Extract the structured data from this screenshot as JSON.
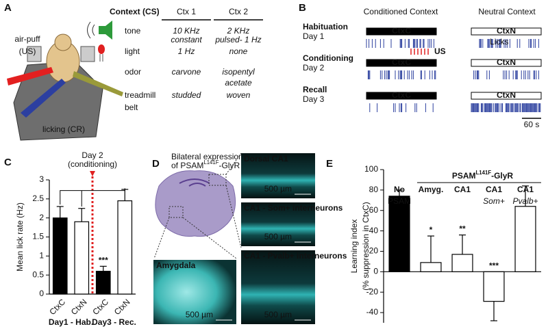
{
  "panel_labels": [
    "A",
    "B",
    "C",
    "D",
    "E"
  ],
  "panel_a": {
    "title": "Context (CS)",
    "columns": [
      "Ctx 1",
      "Ctx 2"
    ],
    "rows": [
      {
        "label": [
          "tone"
        ],
        "ctx1": [
          "10 KHz",
          "constant"
        ],
        "ctx2": [
          "2 KHz",
          "pulsed- 1 Hz"
        ]
      },
      {
        "label": [
          "light"
        ],
        "ctx1": [
          "1 Hz"
        ],
        "ctx2": [
          "none"
        ]
      },
      {
        "label": [
          "odor"
        ],
        "ctx1": [
          "carvone"
        ],
        "ctx2": [
          "isopentyl",
          "acetate"
        ]
      },
      {
        "label": [
          "treadmill",
          "belt"
        ],
        "ctx1": [
          "studded"
        ],
        "ctx2": [
          "woven"
        ]
      }
    ],
    "us_label": [
      "air-puff",
      "(US)"
    ],
    "cr_label": "licking (CR)"
  },
  "panel_b": {
    "columns": [
      "Conditioned Context",
      "Neutral Context"
    ],
    "sessions": [
      {
        "name": "Habituation",
        "day": "Day 1"
      },
      {
        "name": "Conditioning",
        "day": "Day 2"
      },
      {
        "name": "Recall",
        "day": "Day 3"
      }
    ],
    "ctx_c": "CtxC",
    "ctx_n": "CtxN",
    "licks": "Licks",
    "us": "US",
    "scale": "60 s"
  },
  "panel_d": {
    "caption": {
      "line1": "Bilateral expression",
      "line2": "of PSAM",
      "sup": "L141F",
      "suffix": "-GlyR"
    },
    "images": [
      {
        "title": "Dorsal CA1",
        "scale": "500 µm"
      },
      {
        "title": "CA1 - Som+ interneurons",
        "scale": "500 µm"
      },
      {
        "title": "CA1 - Pvalb+ interneurons",
        "scale": "500 µm"
      },
      {
        "title": "Amygdala",
        "scale": "500 µm"
      }
    ]
  },
  "chart_data": [
    {
      "type": "bar",
      "y_label": "Mean lick rate (Hz)",
      "categories": [
        "CtxC",
        "CtxN",
        "CtxC",
        "CtxN"
      ],
      "values": [
        2.0,
        1.9,
        0.6,
        2.45
      ],
      "errors": [
        0.3,
        0.35,
        0.13,
        0.3
      ],
      "colors": [
        "#000000",
        "#ffffff",
        "#000000",
        "#ffffff"
      ],
      "groups": [
        "Day1 - Hab.",
        "Day3 - Rec."
      ],
      "marker": [
        "Day 2",
        "(conditioning)"
      ],
      "significance": [
        null,
        null,
        "***",
        null
      ],
      "ylim": [
        0,
        3
      ],
      "yticks": [
        0,
        0.5,
        1,
        1.5,
        2,
        2.5,
        3
      ]
    },
    {
      "type": "bar",
      "y_label": [
        "Learning index",
        "(% suppression in CtxC)"
      ],
      "categories": [
        [
          "No",
          "PSAM"
        ],
        [
          "Amyg."
        ],
        [
          "CA1"
        ],
        [
          "CA1",
          "Som+"
        ],
        [
          "CA1",
          "Pvalb+"
        ]
      ],
      "values": [
        74,
        9,
        17,
        -29,
        64
      ],
      "errors": [
        6,
        26,
        19,
        19,
        20
      ],
      "colors": [
        "#000000",
        "#ffffff",
        "#ffffff",
        "#ffffff",
        "#ffffff"
      ],
      "group_label": {
        "text": "PSAM",
        "sup": "L141F",
        "suffix": "-GlyR"
      },
      "significance": [
        "",
        "*",
        "**",
        "***",
        null
      ],
      "ylim": [
        -50,
        100
      ],
      "yticks": [
        -40,
        -20,
        0,
        20,
        40,
        60,
        80,
        100
      ]
    }
  ]
}
